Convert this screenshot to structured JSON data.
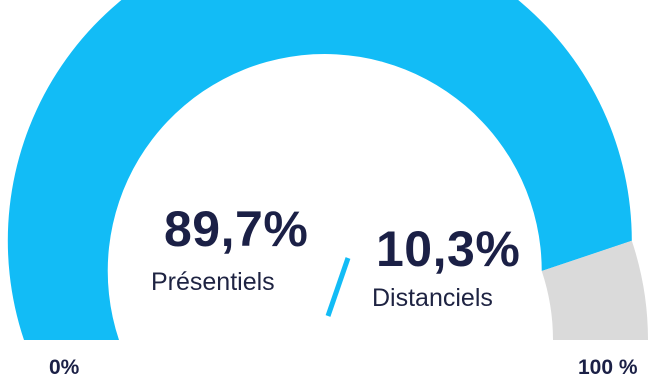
{
  "chart_data": {
    "type": "gauge",
    "min_label": "0%",
    "max_label": "100 %",
    "range": [
      0,
      100
    ],
    "series": [
      {
        "name": "Présentiels",
        "value_label": "89,7%",
        "value": 89.7
      },
      {
        "name": "Distanciels",
        "value_label": "10,3%",
        "value": 10.3
      }
    ],
    "separator": "/",
    "colors": {
      "filled": "#12BCF6",
      "remaining": "#DADADA",
      "text": "#1B2046",
      "separator": "#12BCF6"
    }
  }
}
